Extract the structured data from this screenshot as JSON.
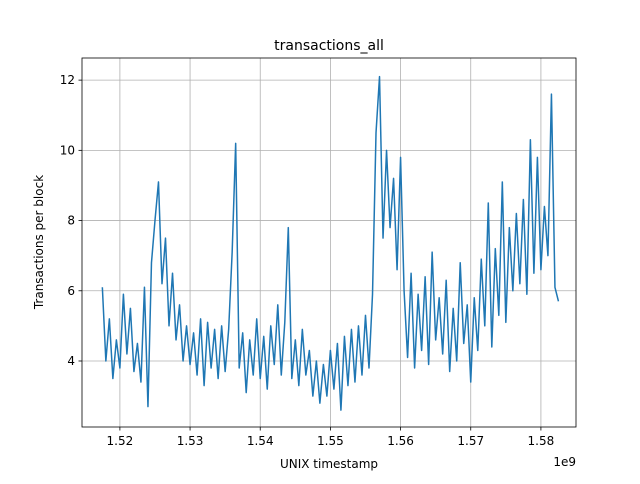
{
  "chart_data": {
    "type": "line",
    "title": "transactions_all",
    "x_label": "UNIX timestamp",
    "y_label": "Transactions per block",
    "x_offset_label": "1e9",
    "x": [
      1.5175,
      1.518,
      1.5185,
      1.519,
      1.5195,
      1.52,
      1.5205,
      1.521,
      1.5215,
      1.522,
      1.5225,
      1.523,
      1.5235,
      1.524,
      1.5245,
      1.525,
      1.5255,
      1.526,
      1.5265,
      1.527,
      1.5275,
      1.528,
      1.5285,
      1.529,
      1.5295,
      1.53,
      1.5305,
      1.531,
      1.5315,
      1.532,
      1.5325,
      1.533,
      1.5335,
      1.534,
      1.5345,
      1.535,
      1.5355,
      1.536,
      1.5365,
      1.537,
      1.5375,
      1.538,
      1.5385,
      1.539,
      1.5395,
      1.54,
      1.5405,
      1.541,
      1.5415,
      1.542,
      1.5425,
      1.543,
      1.5435,
      1.544,
      1.5445,
      1.545,
      1.5455,
      1.546,
      1.5465,
      1.547,
      1.5475,
      1.548,
      1.5485,
      1.549,
      1.5495,
      1.55,
      1.5505,
      1.551,
      1.5515,
      1.552,
      1.5525,
      1.553,
      1.5535,
      1.554,
      1.5545,
      1.555,
      1.5555,
      1.556,
      1.5565,
      1.557,
      1.5575,
      1.558,
      1.5585,
      1.559,
      1.5595,
      1.56,
      1.5605,
      1.561,
      1.5615,
      1.562,
      1.5625,
      1.563,
      1.5635,
      1.564,
      1.5645,
      1.565,
      1.5655,
      1.566,
      1.5665,
      1.567,
      1.5675,
      1.568,
      1.5685,
      1.569,
      1.5695,
      1.57,
      1.5705,
      1.571,
      1.5715,
      1.572,
      1.5725,
      1.573,
      1.5735,
      1.574,
      1.5745,
      1.575,
      1.5755,
      1.576,
      1.5765,
      1.577,
      1.5775,
      1.578,
      1.5785,
      1.579,
      1.5795,
      1.58,
      1.5805,
      1.581,
      1.5815,
      1.582,
      1.5825
    ],
    "series": [
      {
        "color": "#1f77b4",
        "values": [
          6.1,
          4.0,
          5.2,
          3.5,
          4.6,
          3.8,
          5.9,
          4.2,
          5.5,
          3.7,
          4.5,
          3.4,
          6.1,
          2.7,
          6.8,
          8.0,
          9.1,
          6.2,
          7.5,
          5.0,
          6.5,
          4.6,
          5.6,
          4.0,
          5.0,
          3.9,
          4.8,
          3.6,
          5.2,
          3.3,
          5.1,
          3.8,
          4.9,
          3.5,
          5.0,
          3.7,
          4.9,
          7.1,
          10.2,
          3.8,
          4.8,
          3.1,
          4.6,
          3.6,
          5.2,
          3.5,
          4.7,
          3.2,
          5.0,
          3.9,
          5.6,
          3.6,
          5.1,
          7.8,
          3.5,
          4.6,
          3.3,
          4.9,
          3.6,
          4.3,
          3.0,
          4.0,
          2.8,
          3.9,
          3.0,
          4.3,
          3.2,
          4.5,
          2.6,
          4.7,
          3.3,
          4.9,
          3.4,
          5.0,
          3.6,
          5.3,
          3.8,
          5.9,
          10.5,
          12.1,
          7.5,
          10.0,
          7.8,
          9.2,
          6.6,
          9.8,
          6.0,
          4.1,
          6.5,
          3.8,
          5.9,
          4.3,
          6.4,
          3.9,
          7.1,
          4.6,
          5.8,
          4.2,
          6.3,
          3.7,
          5.5,
          4.0,
          6.8,
          4.5,
          5.6,
          3.4,
          5.8,
          4.3,
          6.9,
          5.0,
          8.5,
          4.4,
          7.2,
          5.3,
          9.1,
          5.1,
          7.8,
          6.0,
          8.2,
          6.2,
          8.6,
          5.9,
          10.3,
          6.5,
          9.8,
          6.6,
          8.4,
          7.0,
          11.6,
          6.1,
          5.7
        ]
      }
    ],
    "xlim": [
      1.5146,
      1.585
    ],
    "ylim": [
      2.12,
      12.63
    ],
    "xticks": [
      1.52,
      1.53,
      1.54,
      1.55,
      1.56,
      1.57,
      1.58
    ],
    "yticks": [
      4,
      6,
      8,
      10,
      12
    ],
    "grid": true
  }
}
